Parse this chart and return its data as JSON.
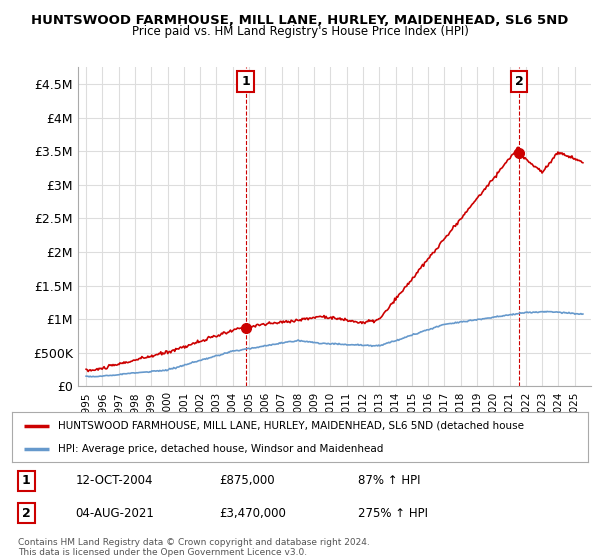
{
  "title": "HUNTSWOOD FARMHOUSE, MILL LANE, HURLEY, MAIDENHEAD, SL6 5ND",
  "subtitle": "Price paid vs. HM Land Registry's House Price Index (HPI)",
  "ylim": [
    0,
    4750000
  ],
  "yticks": [
    0,
    500000,
    1000000,
    1500000,
    2000000,
    2500000,
    3000000,
    3500000,
    4000000,
    4500000
  ],
  "ytick_labels": [
    "£0",
    "£500K",
    "£1M",
    "£1.5M",
    "£2M",
    "£2.5M",
    "£3M",
    "£3.5M",
    "£4M",
    "£4.5M"
  ],
  "background_color": "#ffffff",
  "grid_color": "#dddddd",
  "sale1_date": 2004.79,
  "sale1_price": 875000,
  "sale2_date": 2021.58,
  "sale2_price": 3470000,
  "red_line_color": "#cc0000",
  "blue_line_color": "#6699cc",
  "annotation_box_color": "#cc0000",
  "legend_red_label": "HUNTSWOOD FARMHOUSE, MILL LANE, HURLEY, MAIDENHEAD, SL6 5ND (detached house",
  "legend_blue_label": "HPI: Average price, detached house, Windsor and Maidenhead",
  "note1_num": "1",
  "note1_date": "12-OCT-2004",
  "note1_price": "£875,000",
  "note1_hpi": "87% ↑ HPI",
  "note2_num": "2",
  "note2_date": "04-AUG-2021",
  "note2_price": "£3,470,000",
  "note2_hpi": "275% ↑ HPI",
  "copyright": "Contains HM Land Registry data © Crown copyright and database right 2024.\nThis data is licensed under the Open Government Licence v3.0."
}
